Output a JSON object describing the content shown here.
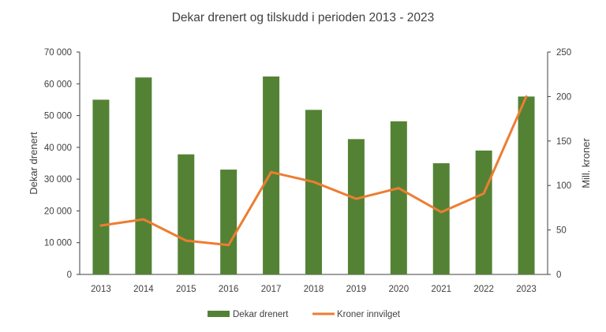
{
  "chart_data": {
    "type": "bar+line",
    "title": "Dekar drenert og tilskudd i perioden 2013 - 2023",
    "categories": [
      "2013",
      "2014",
      "2015",
      "2016",
      "2017",
      "2018",
      "2019",
      "2020",
      "2021",
      "2022",
      "2023"
    ],
    "series": [
      {
        "name": "Dekar drenert",
        "kind": "bar",
        "axis": "left",
        "color": "#548235",
        "values": [
          55000,
          62000,
          37800,
          33000,
          62300,
          51800,
          42600,
          48200,
          35000,
          39000,
          56000
        ]
      },
      {
        "name": "Kroner innvilget",
        "kind": "line",
        "axis": "right",
        "color": "#ED7D31",
        "values": [
          55,
          62,
          38,
          33,
          115,
          104,
          85,
          97,
          70,
          91,
          200
        ]
      }
    ],
    "ylabel_left": "Dekar drenert",
    "ylabel_right": "Mill. kroner",
    "ylim_left": [
      0,
      70000
    ],
    "ylim_right": [
      0,
      250
    ],
    "yticks_left": [
      "0",
      "10 000",
      "20 000",
      "30 000",
      "40 000",
      "50 000",
      "60 000",
      "70 000"
    ],
    "yticks_right": [
      "0",
      "50",
      "100",
      "150",
      "200",
      "250"
    ],
    "grid": false,
    "legend_position": "bottom"
  }
}
